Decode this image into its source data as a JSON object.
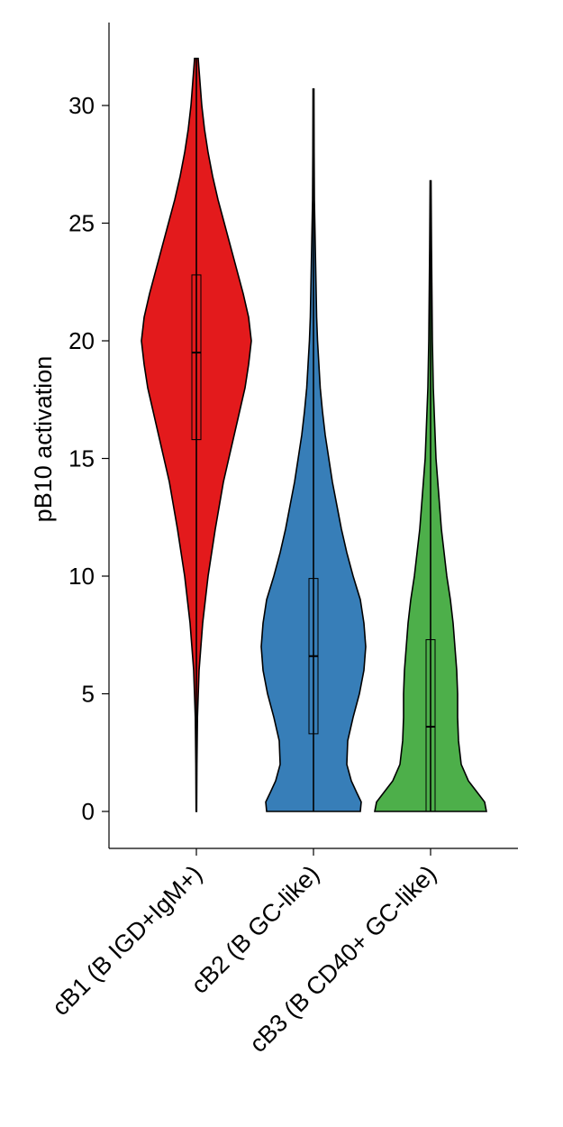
{
  "chart_data": {
    "type": "violin",
    "title": "",
    "xlabel": "",
    "ylabel": "pB10 activation",
    "ylim": [
      -1.5,
      33.5
    ],
    "yticks": [
      0,
      5,
      10,
      15,
      20,
      25,
      30
    ],
    "grid": false,
    "legend": "none",
    "categories": [
      "cB1 (B IGD+IgM+)",
      "cB2 (B GC-like)",
      "cB3 (B CD40+ GC-like)"
    ],
    "series": [
      {
        "color": "#e31a1c",
        "min": 0,
        "q1": 15.8,
        "median": 19.5,
        "q3": 22.8,
        "max": 32,
        "density": [
          [
            0,
            0.3
          ],
          [
            2,
            0.6
          ],
          [
            4,
            1.2
          ],
          [
            6,
            3
          ],
          [
            8,
            7
          ],
          [
            10,
            13
          ],
          [
            12,
            21
          ],
          [
            14,
            30
          ],
          [
            15,
            36
          ],
          [
            16,
            42
          ],
          [
            17,
            48
          ],
          [
            18,
            54
          ],
          [
            19,
            58
          ],
          [
            20,
            61
          ],
          [
            21,
            58
          ],
          [
            22,
            52
          ],
          [
            23,
            45
          ],
          [
            24,
            38
          ],
          [
            25,
            31
          ],
          [
            26,
            24
          ],
          [
            27,
            18
          ],
          [
            28,
            13
          ],
          [
            29,
            9
          ],
          [
            30,
            6
          ],
          [
            31,
            4
          ],
          [
            32,
            2
          ]
        ]
      },
      {
        "color": "#377eb8",
        "min": 0,
        "q1": 3.3,
        "median": 6.6,
        "q3": 9.9,
        "max": 30.7,
        "density": [
          [
            0,
            52
          ],
          [
            0.4,
            53
          ],
          [
            0.8,
            48
          ],
          [
            1.3,
            42
          ],
          [
            2,
            37
          ],
          [
            3,
            38
          ],
          [
            4,
            44
          ],
          [
            5,
            51
          ],
          [
            6,
            56
          ],
          [
            7,
            58
          ],
          [
            8,
            56
          ],
          [
            9,
            52
          ],
          [
            10,
            44
          ],
          [
            11,
            37
          ],
          [
            12,
            31
          ],
          [
            13,
            26
          ],
          [
            14,
            21
          ],
          [
            15,
            17
          ],
          [
            16,
            13
          ],
          [
            17,
            10
          ],
          [
            18,
            7.5
          ],
          [
            19,
            6
          ],
          [
            20,
            4.5
          ],
          [
            21,
            3.5
          ],
          [
            22,
            3
          ],
          [
            23,
            2.5
          ],
          [
            24,
            2
          ],
          [
            25,
            1.5
          ],
          [
            26,
            1
          ],
          [
            28,
            0.7
          ],
          [
            30.7,
            0.5
          ]
        ]
      },
      {
        "color": "#4daf4a",
        "min": 0,
        "q1": 0,
        "median": 3.6,
        "q3": 7.3,
        "max": 26.8,
        "density": [
          [
            0,
            62
          ],
          [
            0.4,
            60
          ],
          [
            0.8,
            52
          ],
          [
            1.3,
            42
          ],
          [
            2,
            34
          ],
          [
            3,
            31
          ],
          [
            4,
            30
          ],
          [
            5,
            30
          ],
          [
            6,
            29
          ],
          [
            7,
            27
          ],
          [
            8,
            25
          ],
          [
            9,
            22
          ],
          [
            10,
            18
          ],
          [
            11,
            15
          ],
          [
            12,
            12
          ],
          [
            13,
            10
          ],
          [
            14,
            8
          ],
          [
            15,
            6
          ],
          [
            16,
            5
          ],
          [
            17,
            4
          ],
          [
            18,
            3
          ],
          [
            19,
            2.5
          ],
          [
            20,
            2
          ],
          [
            22,
            1.5
          ],
          [
            24,
            1
          ],
          [
            26.8,
            0.5
          ]
        ]
      }
    ]
  }
}
